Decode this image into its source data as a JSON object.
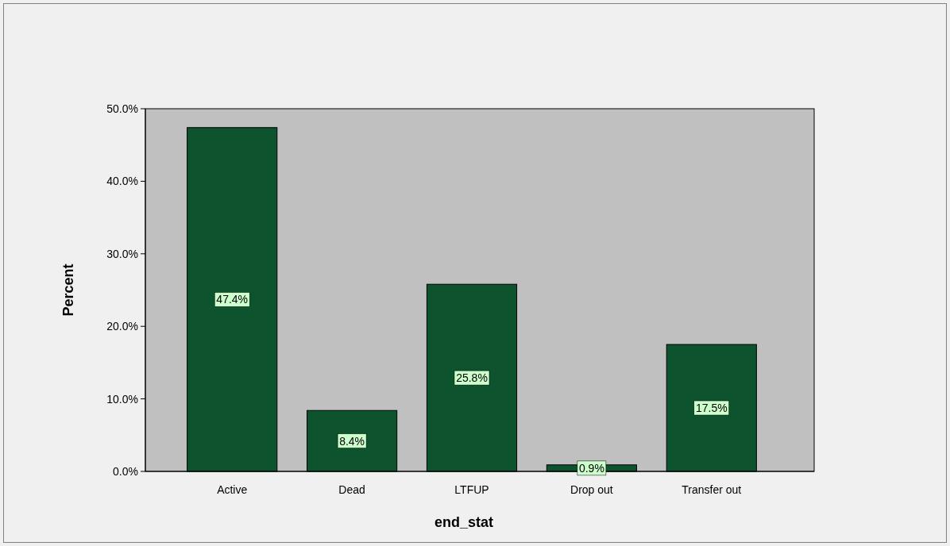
{
  "chart_data": {
    "type": "bar",
    "xlabel": "end_stat",
    "ylabel": "Percent",
    "categories": [
      "Active",
      "Dead",
      "LTFUP",
      "Drop out",
      "Transfer out"
    ],
    "values": [
      47.4,
      8.4,
      25.8,
      0.9,
      17.5
    ],
    "value_labels": [
      "47.4%",
      "8.4%",
      "25.8%",
      "0.9%",
      "17.5%"
    ],
    "color": "#0d532d",
    "ylim": [
      0,
      50
    ],
    "yticks": [
      {
        "value": 0,
        "label": "0.0%"
      },
      {
        "value": 10,
        "label": "10.0%"
      },
      {
        "value": 20,
        "label": "20.0%"
      },
      {
        "value": 30,
        "label": "30.0%"
      },
      {
        "value": 40,
        "label": "40.0%"
      },
      {
        "value": 50,
        "label": "50.0%"
      }
    ],
    "grid": false
  }
}
